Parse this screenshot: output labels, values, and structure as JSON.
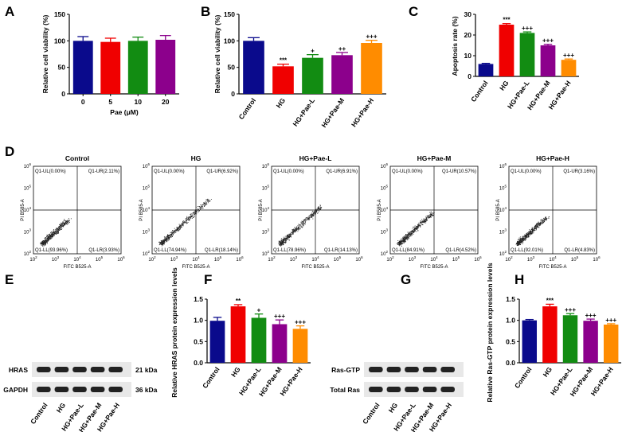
{
  "panel_labels": [
    "A",
    "B",
    "C",
    "D",
    "E",
    "F",
    "G",
    "H"
  ],
  "chart_data": [
    {
      "panel": "A",
      "type": "bar",
      "categories": [
        "0",
        "5",
        "10",
        "20"
      ],
      "values": [
        100,
        98,
        100,
        102
      ],
      "errors": [
        8,
        7,
        7,
        8
      ],
      "colors": [
        "#0a0a8c",
        "#f00000",
        "#128c12",
        "#8c008c"
      ],
      "xlabel": "Pae (μM)",
      "ylabel": "Relative cell viability (%)",
      "ylim": [
        0,
        150
      ],
      "yticks": [
        "0",
        "50",
        "100",
        "150"
      ],
      "annotations": [
        "",
        "",
        "",
        ""
      ]
    },
    {
      "panel": "B",
      "type": "bar",
      "categories": [
        "Control",
        "HG",
        "HG+Pae-L",
        "HG+Pae-M",
        "HG+Pae-H"
      ],
      "values": [
        100,
        52,
        68,
        73,
        96
      ],
      "errors": [
        6,
        4,
        6,
        5,
        5
      ],
      "colors": [
        "#0a0a8c",
        "#f00000",
        "#128c12",
        "#8c008c",
        "#ff8c00"
      ],
      "xlabel": "",
      "ylabel": "Relative cell viability (%)",
      "ylim": [
        0,
        150
      ],
      "yticks": [
        "0",
        "50",
        "100",
        "150"
      ],
      "annotations": [
        "",
        "***",
        "+",
        "++",
        "+++"
      ]
    },
    {
      "panel": "C",
      "type": "bar",
      "categories": [
        "Control",
        "HG",
        "HG+Pae-L",
        "HG+Pae-M",
        "HG+Pae-H"
      ],
      "values": [
        6,
        25,
        21,
        15,
        8
      ],
      "errors": [
        0.3,
        0.5,
        0.5,
        0.5,
        0.4
      ],
      "colors": [
        "#0a0a8c",
        "#f00000",
        "#128c12",
        "#8c008c",
        "#ff8c00"
      ],
      "xlabel": "",
      "ylabel": "Apoptosis rate (%)",
      "ylim": [
        0,
        30
      ],
      "yticks": [
        "0",
        "10",
        "20",
        "30"
      ],
      "annotations": [
        "",
        "***",
        "+++",
        "+++",
        "+++"
      ]
    },
    {
      "panel": "F",
      "type": "bar",
      "categories": [
        "Control",
        "HG",
        "HG+Pae-L",
        "HG+Pae-M",
        "HG+Pae-H"
      ],
      "values": [
        0.99,
        1.33,
        1.06,
        0.91,
        0.8
      ],
      "errors": [
        0.08,
        0.04,
        0.09,
        0.1,
        0.07
      ],
      "colors": [
        "#0a0a8c",
        "#f00000",
        "#128c12",
        "#8c008c",
        "#ff8c00"
      ],
      "xlabel": "",
      "ylabel": "Relative HRAS protein expression levels",
      "ylim": [
        0,
        1.5
      ],
      "yticks": [
        "0.0",
        "0.5",
        "1.0",
        "1.5"
      ],
      "annotations": [
        "",
        "**",
        "+",
        "+++",
        "+++"
      ]
    },
    {
      "panel": "H",
      "type": "bar",
      "categories": [
        "Control",
        "HG",
        "HG+Pae-L",
        "HG+Pae-M",
        "HG+Pae-H"
      ],
      "values": [
        1.0,
        1.33,
        1.12,
        0.99,
        0.9
      ],
      "errors": [
        0.02,
        0.05,
        0.04,
        0.04,
        0.02
      ],
      "colors": [
        "#0a0a8c",
        "#f00000",
        "#128c12",
        "#8c008c",
        "#ff8c00"
      ],
      "xlabel": "",
      "ylabel": "Relative Ras-GTP protein expression levels",
      "ylim": [
        0,
        1.5
      ],
      "yticks": [
        "0.0",
        "0.5",
        "1.0",
        "1.5"
      ],
      "annotations": [
        "",
        "***",
        "+++",
        "+++",
        "+++"
      ]
    },
    {
      "panel": "D",
      "type": "scatter",
      "xlabel": "FITC B525-A",
      "ylabel": "PI B585-A",
      "ticks": [
        "10",
        "10",
        "10",
        "10",
        "10"
      ],
      "tick_exponents": [
        "2",
        "3",
        "4",
        "5",
        "6"
      ],
      "plots": [
        {
          "title": "Control",
          "ul": "Q1-UL(0.00%)",
          "ur": "Q1-UR(2.11%)",
          "ll": "Q1-LL(93.96%)",
          "lr": "Q1-LR(3.93%)",
          "spread": 0.55
        },
        {
          "title": "HG",
          "ul": "Q1-UL(0.00%)",
          "ur": "Q1-UR(6.92%)",
          "ll": "Q1-LL(74.94%)",
          "lr": "Q1-LR(18.14%)",
          "spread": 1.0
        },
        {
          "title": "HG+Pae-L",
          "ul": "Q1-UL(0.00%)",
          "ur": "Q1-UR(6.91%)",
          "ll": "Q1-LL(78.96%)",
          "lr": "Q1-LR(14.13%)",
          "spread": 0.85
        },
        {
          "title": "HG+Pae-M",
          "ul": "Q1-UL(0.00%)",
          "ur": "Q1-UR(10.57%)",
          "ll": "Q1-LL(84.91%)",
          "lr": "Q1-LR(4.52%)",
          "spread": 0.7
        },
        {
          "title": "HG+Pae-H",
          "ul": "Q1-UL(0.00%)",
          "ur": "Q1-UR(3.16%)",
          "ll": "Q1-LL(92.01%)",
          "lr": "Q1-LR(4.83%)",
          "spread": 0.6
        }
      ]
    }
  ],
  "western_blots": [
    {
      "panel": "E",
      "rows": [
        {
          "label": "HRAS",
          "kda": "21 kDa"
        },
        {
          "label": "GAPDH",
          "kda": "36 kDa"
        }
      ],
      "lanes": [
        "Control",
        "HG",
        "HG+Pae-L",
        "HG+Pae-M",
        "HG+Pae-H"
      ]
    },
    {
      "panel": "G",
      "rows": [
        {
          "label": "Ras-GTP",
          "kda": ""
        },
        {
          "label": "Total Ras",
          "kda": ""
        }
      ],
      "lanes": [
        "Control",
        "HG",
        "HG+Pae-L",
        "HG+Pae-M",
        "HG+Pae-H"
      ]
    }
  ]
}
